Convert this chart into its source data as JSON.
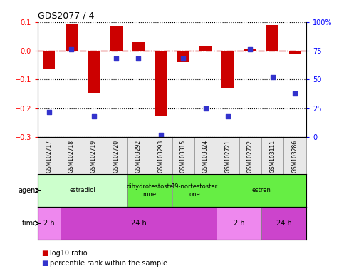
{
  "title": "GDS2077 / 4",
  "samples": [
    "GSM102717",
    "GSM102718",
    "GSM102719",
    "GSM102720",
    "GSM103292",
    "GSM103293",
    "GSM103315",
    "GSM103324",
    "GSM102721",
    "GSM102722",
    "GSM103111",
    "GSM103286"
  ],
  "log10_ratio": [
    -0.065,
    0.095,
    -0.145,
    0.085,
    0.03,
    -0.225,
    -0.04,
    0.015,
    -0.13,
    0.005,
    0.09,
    -0.01
  ],
  "percentile_rank": [
    22,
    76,
    18,
    68,
    68,
    2,
    68,
    25,
    18,
    76,
    52,
    38
  ],
  "bar_color": "#cc0000",
  "dot_color": "#3333cc",
  "ref_line_color": "#cc0000",
  "ylim": [
    -0.3,
    0.1
  ],
  "yticks_left": [
    -0.3,
    -0.2,
    -0.1,
    0.0,
    0.1
  ],
  "yticks_right": [
    0,
    25,
    50,
    75,
    100
  ],
  "agent_groups": [
    {
      "label": "estradiol",
      "start": 0,
      "end": 4,
      "color": "#ccffcc"
    },
    {
      "label": "dihydrotestoste\nrone",
      "start": 4,
      "end": 6,
      "color": "#66ee44"
    },
    {
      "label": "19-nortestoster\none",
      "start": 6,
      "end": 8,
      "color": "#66ee44"
    },
    {
      "label": "estren",
      "start": 8,
      "end": 12,
      "color": "#66ee44"
    }
  ],
  "time_groups": [
    {
      "label": "2 h",
      "start": 0,
      "end": 1,
      "color": "#ee88ee"
    },
    {
      "label": "24 h",
      "start": 1,
      "end": 8,
      "color": "#cc44cc"
    },
    {
      "label": "2 h",
      "start": 8,
      "end": 10,
      "color": "#ee88ee"
    },
    {
      "label": "24 h",
      "start": 10,
      "end": 12,
      "color": "#cc44cc"
    }
  ],
  "legend_bar_label": "log10 ratio",
  "legend_dot_label": "percentile rank within the sample",
  "agent_label": "agent",
  "time_label": "time",
  "bar_width": 0.55
}
